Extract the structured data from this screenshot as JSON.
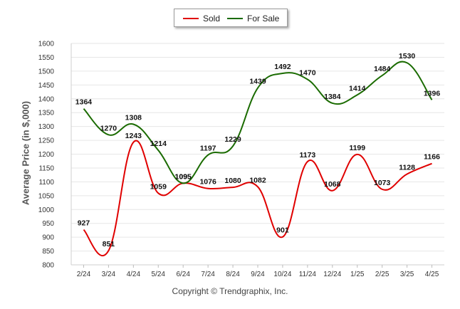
{
  "legend": {
    "sold": "Sold",
    "for_sale": "For Sale"
  },
  "footer": "Copyright © Trendgraphix, Inc.",
  "chart_data": {
    "type": "line",
    "title": "",
    "xlabel": "",
    "ylabel": "Average Price (in $,000)",
    "ylim": [
      800,
      1600
    ],
    "yticks": [
      800,
      850,
      900,
      950,
      1000,
      1050,
      1100,
      1150,
      1200,
      1250,
      1300,
      1350,
      1400,
      1450,
      1500,
      1550,
      1600
    ],
    "grid": true,
    "legend_position": "top-center",
    "categories": [
      "2/24",
      "3/24",
      "4/24",
      "5/24",
      "6/24",
      "7/24",
      "8/24",
      "9/24",
      "10/24",
      "11/24",
      "12/24",
      "1/25",
      "2/25",
      "3/25",
      "4/25"
    ],
    "series": [
      {
        "name": "Sold",
        "color": "#e00000",
        "values": [
          927,
          851,
          1243,
          1059,
          1095,
          1076,
          1080,
          1082,
          901,
          1173,
          1068,
          1199,
          1073,
          1128,
          1166
        ]
      },
      {
        "name": "For Sale",
        "color": "#1a6b00",
        "values": [
          1364,
          1270,
          1308,
          1214,
          1095,
          1197,
          1229,
          1439,
          1492,
          1470,
          1384,
          1414,
          1484,
          1530,
          1396
        ]
      }
    ]
  }
}
